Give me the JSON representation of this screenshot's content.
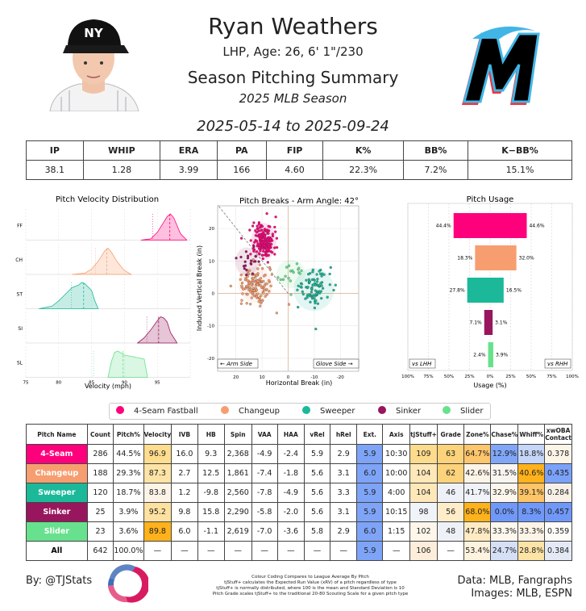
{
  "header": {
    "name": "Ryan Weathers",
    "bio": "LHP, Age: 26, 6' 1\"/230",
    "title": "Season Pitching Summary",
    "season": "2025 MLB Season",
    "dates": "2025-05-14 to 2025-09-24"
  },
  "logo_cap": {
    "letters": "NY"
  },
  "team_logo": {
    "letter": "M"
  },
  "stats": {
    "headers": [
      "IP",
      "WHIP",
      "ERA",
      "PA",
      "FIP",
      "K%",
      "BB%",
      "K−BB%"
    ],
    "values": [
      "38.1",
      "1.28",
      "3.99",
      "166",
      "4.60",
      "22.3%",
      "7.2%",
      "15.1%"
    ]
  },
  "legend": [
    {
      "label": "4-Seam Fastball",
      "color": "#FF007D"
    },
    {
      "label": "Changeup",
      "color": "#F79E70"
    },
    {
      "label": "Sweeper",
      "color": "#1BB999"
    },
    {
      "label": "Sinker",
      "color": "#98165D"
    },
    {
      "label": "Slider",
      "color": "#67E18D"
    }
  ],
  "pitch_table": {
    "headers": [
      "Pitch Name",
      "Count",
      "Pitch%",
      "Velocity",
      "IVB",
      "HB",
      "Spin",
      "VAA",
      "HAA",
      "vRel",
      "hRel",
      "Ext.",
      "Axis",
      "tjStuff+",
      "Grade",
      "Zone%",
      "Chase%",
      "Whiff%",
      "xwOBA Contact"
    ],
    "rows": [
      {
        "name": "4-Seam",
        "name_color": "#FF007D",
        "cells": [
          "286",
          "44.5%",
          "96.9",
          "16.0",
          "9.3",
          "2,368",
          "-4.9",
          "-2.4",
          "5.9",
          "2.9",
          "5.9",
          "10:30",
          "109",
          "63",
          "64.7%",
          "12.9%",
          "18.8%",
          "0.378"
        ]
      },
      {
        "name": "Changeup",
        "name_color": "#F79E70",
        "cells": [
          "188",
          "29.3%",
          "87.3",
          "2.7",
          "12.5",
          "1,861",
          "-7.4",
          "-1.8",
          "5.6",
          "3.1",
          "6.0",
          "10:00",
          "104",
          "62",
          "42.6%",
          "31.5%",
          "40.6%",
          "0.435"
        ]
      },
      {
        "name": "Sweeper",
        "name_color": "#1BB999",
        "cells": [
          "120",
          "18.7%",
          "83.8",
          "1.2",
          "-9.8",
          "2,560",
          "-7.8",
          "-4.9",
          "5.6",
          "3.3",
          "5.9",
          "4:00",
          "104",
          "46",
          "41.7%",
          "32.9%",
          "39.1%",
          "0.284"
        ]
      },
      {
        "name": "Sinker",
        "name_color": "#98165D",
        "cells": [
          "25",
          "3.9%",
          "95.2",
          "9.8",
          "15.8",
          "2,290",
          "-5.8",
          "-2.0",
          "5.6",
          "3.1",
          "5.9",
          "10:15",
          "98",
          "56",
          "68.0%",
          "0.0%",
          "8.3%",
          "0.457"
        ]
      },
      {
        "name": "Slider",
        "name_color": "#67E18D",
        "cells": [
          "23",
          "3.6%",
          "89.8",
          "6.0",
          "-1.1",
          "2,619",
          "-7.0",
          "-3.6",
          "5.8",
          "2.9",
          "6.0",
          "1:15",
          "102",
          "48",
          "47.8%",
          "33.3%",
          "33.3%",
          "0.359"
        ]
      },
      {
        "name": "All",
        "name_color": "#FFFFFF",
        "cells": [
          "642",
          "100.0%",
          "—",
          "—",
          "—",
          "—",
          "—",
          "—",
          "—",
          "—",
          "5.9",
          "—",
          "106",
          "—",
          "53.4%",
          "24.7%",
          "28.8%",
          "0.384"
        ]
      }
    ],
    "cell_colors": [
      [
        "",
        "",
        "#FEDD8F",
        "",
        "",
        "",
        "",
        "",
        "",
        "",
        "#7EA4F8",
        "",
        "#FDDB8C",
        "#FCD37B",
        "#FDC66D",
        "#80A6F8",
        "#C6D6F8",
        "#FDF4E8"
      ],
      [
        "",
        "",
        "#FDE3A5",
        "",
        "",
        "",
        "",
        "",
        "",
        "",
        "#7EA4F8",
        "",
        "#FEE8B9",
        "#FCD37B",
        "#FDF4E8",
        "#F8F4F0",
        "#FFB21B",
        "#7BA2F9"
      ],
      [
        "",
        "",
        "#FDF4E8",
        "",
        "",
        "",
        "",
        "",
        "",
        "",
        "#7EA4F8",
        "",
        "#FEE8B9",
        "#EEF2F8",
        "#F0F3F8",
        "#FCF6EC",
        "#FDC468",
        "#F6F0E6"
      ],
      [
        "",
        "",
        "#FEE1A0",
        "",
        "",
        "",
        "",
        "",
        "",
        "",
        "#7EA4F8",
        "",
        "#F0F3F8",
        "#FEEDC8",
        "#FFB21B",
        "#6F98F9",
        "#6F98F9",
        "#6F98F9"
      ],
      [
        "",
        "",
        "#FFB21B",
        "",
        "",
        "",
        "",
        "",
        "",
        "",
        "#7EA4F8",
        "",
        "#FEF6EA",
        "#EEF2F8",
        "#FEEBC4",
        "#FDF8EE",
        "#FDF4E8",
        "#FEFCF9"
      ],
      [
        "",
        "",
        "",
        "",
        "",
        "",
        "",
        "",
        "",
        "",
        "#7EA4F8",
        "",
        "#FCEEDB",
        "",
        "#FEF3DE",
        "#D5DFF6",
        "#FDE3A5",
        "#E4EAF5"
      ]
    ]
  },
  "footer": {
    "byline": "By: @TJStats",
    "note_lines": [
      "Colour Coding Compares to League Average By Pitch",
      "tjStuff+ calculates the Expected Run Value (xRV) of a pitch regardless of type",
      "tjStuff+ is normally distributed, where 100 is the mean and Standard Deviation is 10",
      "Pitch Grade scales tjStuff+ to the traditional 20-80 Scouting Scale for a given pitch type"
    ],
    "data_src": "Data: MLB, Fangraphs",
    "images_src": "Images: MLB, ESPN"
  },
  "chart_data": [
    {
      "type": "area",
      "title": "Pitch Velocity Distribution",
      "xlabel": "Velocity (mph)",
      "xlim": [
        75,
        100
      ],
      "xticks": [
        "75",
        "80",
        "85",
        "90",
        "95"
      ],
      "series": [
        {
          "name": "FF",
          "color": "#FF007D",
          "x": [
            92.5,
            94,
            95,
            96,
            96.5,
            97,
            97.5,
            98,
            98.5,
            99.5
          ],
          "y": [
            0,
            0.05,
            0.3,
            0.7,
            0.9,
            1.0,
            0.85,
            0.55,
            0.25,
            0
          ],
          "mean": 96.9,
          "league_mean": 94.3
        },
        {
          "name": "CH",
          "color": "#F79E70",
          "x": [
            82,
            84,
            85,
            86,
            87,
            87.5,
            88,
            89,
            90,
            91
          ],
          "y": [
            0,
            0.05,
            0.2,
            0.5,
            0.9,
            1.0,
            0.85,
            0.45,
            0.15,
            0
          ],
          "mean": 87.3,
          "league_mean": 85.6
        },
        {
          "name": "ST",
          "color": "#1BB999",
          "x": [
            77,
            79,
            80,
            81,
            82,
            83,
            83.5,
            84,
            85,
            85.5,
            86
          ],
          "y": [
            0,
            0.1,
            0.3,
            0.55,
            0.8,
            0.9,
            1.0,
            0.95,
            0.7,
            0.3,
            0
          ],
          "mean": 83.8,
          "league_mean": 81.9
        },
        {
          "name": "SI",
          "color": "#98165D",
          "x": [
            92,
            93,
            94,
            95,
            95.5,
            96,
            96.5,
            97,
            98
          ],
          "y": [
            0,
            0.2,
            0.5,
            0.85,
            1.0,
            0.95,
            0.8,
            0.4,
            0
          ],
          "mean": 95.2,
          "league_mean": 93.4
        },
        {
          "name": "SL",
          "color": "#67E18D",
          "x": [
            87.5,
            88,
            88.5,
            89,
            90,
            91,
            92,
            93,
            93.5
          ],
          "y": [
            0,
            0.6,
            0.95,
            1.0,
            0.85,
            0.8,
            0.75,
            0.7,
            0
          ],
          "mean": 89.8,
          "league_mean": 85.3
        }
      ]
    },
    {
      "type": "scatter",
      "title": "Pitch Breaks - Arm Angle: 42°",
      "xlabel": "Horizontal Break (in)",
      "ylabel": "Induced Vertical Break (in)",
      "xlim": [
        27,
        -27
      ],
      "ylim": [
        -24,
        27
      ],
      "xticks": [
        20,
        10,
        0,
        -10,
        -20
      ],
      "yticks": [
        20,
        10,
        0,
        -10,
        -20
      ],
      "arm_angle_deg": 42,
      "left_label": "← Arm Side",
      "right_label": "Glove Side →",
      "series": [
        {
          "name": "4-Seam",
          "color": "#FF007D",
          "n": 200,
          "cx": 9.3,
          "cy": 16.0,
          "sx": 2.2,
          "sy": 2.6
        },
        {
          "name": "Changeup",
          "color": "#F79E70",
          "n": 130,
          "cx": 12.5,
          "cy": 2.7,
          "sx": 3.0,
          "sy": 2.5
        },
        {
          "name": "Sweeper",
          "color": "#1BB999",
          "n": 90,
          "cx": -9.8,
          "cy": 1.2,
          "sx": 3.5,
          "sy": 3.0
        },
        {
          "name": "Sinker",
          "color": "#98165D",
          "n": 20,
          "cx": 15.8,
          "cy": 9.8,
          "sx": 2.0,
          "sy": 2.0
        },
        {
          "name": "Slider",
          "color": "#67E18D",
          "n": 18,
          "cx": -1.1,
          "cy": 6.0,
          "sx": 2.5,
          "sy": 2.0
        }
      ]
    },
    {
      "type": "bar",
      "title": "Pitch Usage",
      "xlabel": "Usage (%)",
      "xticks": [
        "100%",
        "75%",
        "50%",
        "25%",
        "0%",
        "25%",
        "50%",
        "75%",
        "100%"
      ],
      "left_label": "vs LHH",
      "right_label": "vs RHH",
      "categories": [
        "4-Seam",
        "Changeup",
        "Sweeper",
        "Sinker",
        "Slider"
      ],
      "colors": [
        "#FF007D",
        "#F79E70",
        "#1BB999",
        "#98165D",
        "#67E18D"
      ],
      "series": [
        {
          "name": "vs LHH",
          "values": [
            44.4,
            18.3,
            27.8,
            7.1,
            2.4
          ]
        },
        {
          "name": "vs RHH",
          "values": [
            44.6,
            32.0,
            16.5,
            3.1,
            3.9
          ]
        }
      ]
    }
  ]
}
